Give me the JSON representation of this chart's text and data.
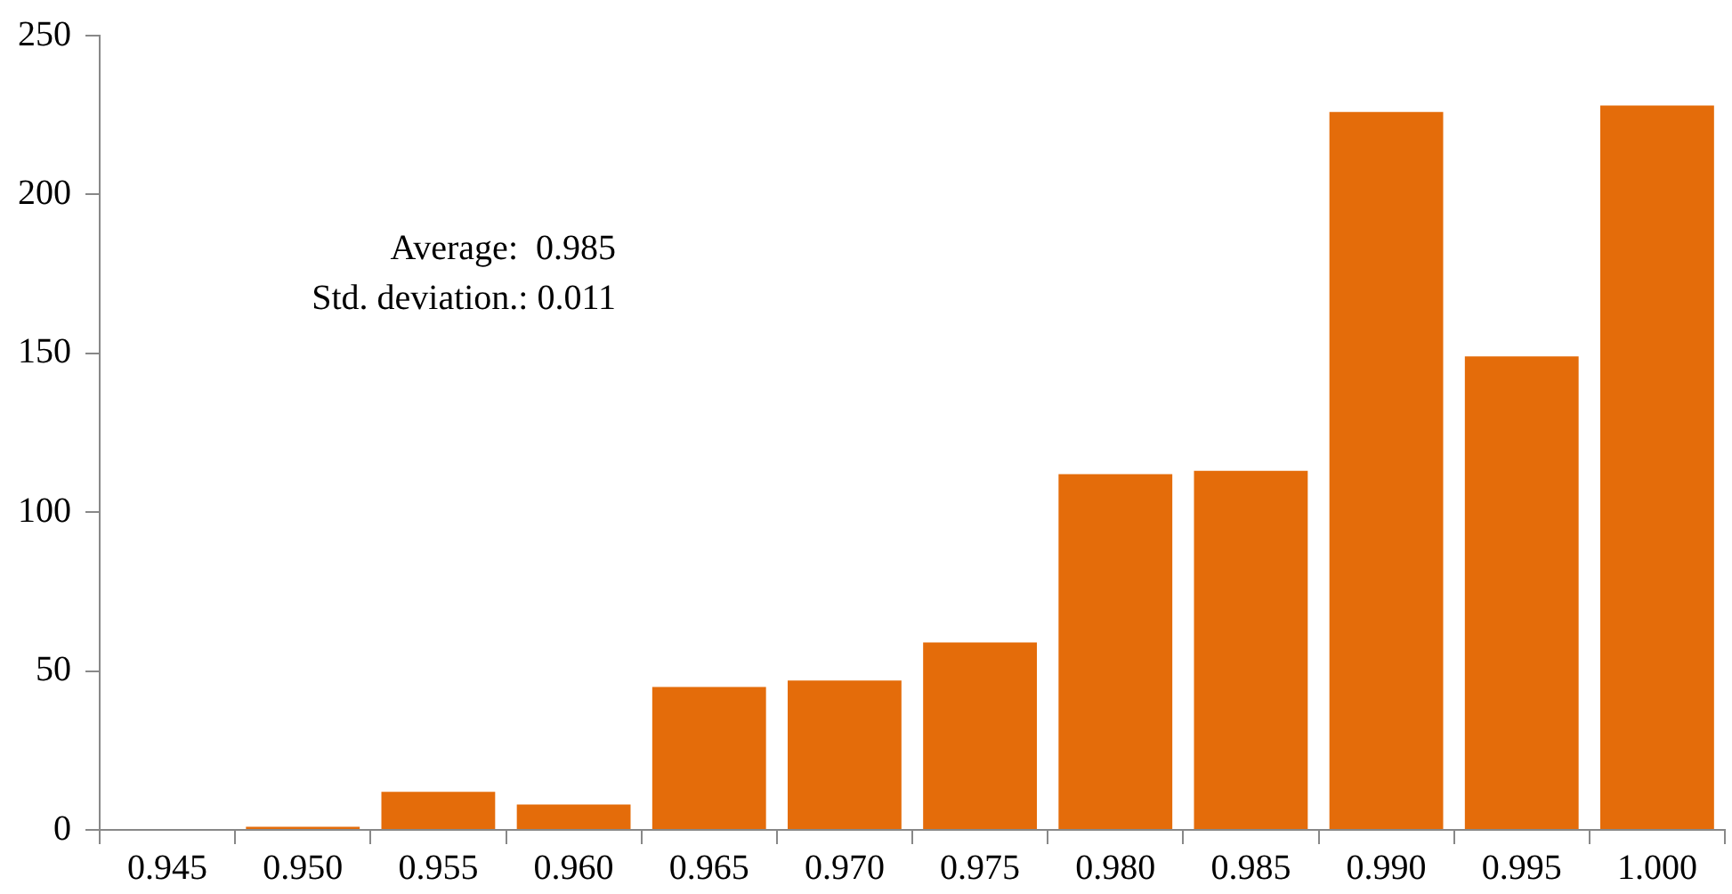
{
  "chart_data": {
    "type": "bar",
    "categories": [
      "0.945",
      "0.950",
      "0.955",
      "0.960",
      "0.965",
      "0.970",
      "0.975",
      "0.980",
      "0.985",
      "0.990",
      "0.995",
      "1.000"
    ],
    "values": [
      0,
      1,
      12,
      8,
      45,
      47,
      59,
      112,
      113,
      226,
      149,
      228
    ],
    "color": "#e46c0a",
    "ylim": [
      0,
      250
    ],
    "yticks": [
      0,
      50,
      100,
      150,
      200,
      250
    ],
    "grid": false,
    "legend": false,
    "annotations": [
      "Average:  0.985",
      "Std. deviation.: 0.011"
    ]
  }
}
